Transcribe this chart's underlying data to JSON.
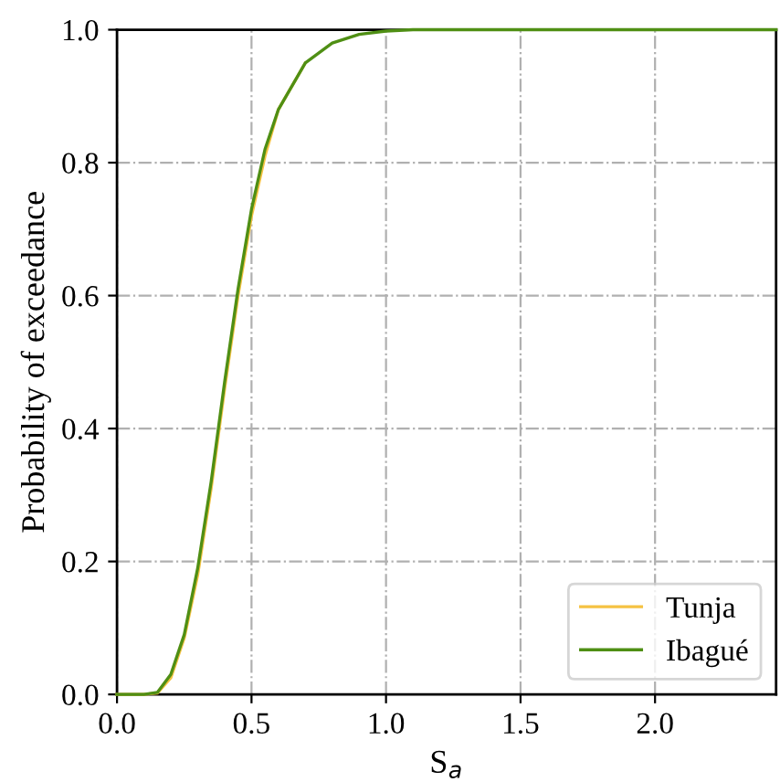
{
  "chart_data": {
    "type": "line",
    "xlabel": "S$_{a}$",
    "ylabel": "Probability of exceedance",
    "x": [
      0,
      0.1,
      0.15,
      0.2,
      0.25,
      0.3,
      0.35,
      0.4,
      0.45,
      0.5,
      0.55,
      0.6,
      0.7,
      0.8,
      0.9,
      1.0,
      1.1,
      1.5,
      2.0,
      2.45
    ],
    "series": [
      {
        "name": "Tunja",
        "color": "#f5c242",
        "values": [
          0,
          0,
          0.002,
          0.025,
          0.085,
          0.18,
          0.31,
          0.46,
          0.6,
          0.72,
          0.81,
          0.88,
          0.95,
          null,
          null,
          null,
          null,
          null,
          null,
          null
        ]
      },
      {
        "name": "Ibagué",
        "color": "#4f8f14",
        "values": [
          0,
          0,
          0.003,
          0.03,
          0.09,
          0.19,
          0.32,
          0.47,
          0.61,
          0.73,
          0.82,
          0.88,
          0.95,
          0.98,
          0.993,
          0.998,
          1,
          1,
          1,
          1
        ]
      }
    ],
    "xlim": [
      0,
      2.45
    ],
    "ylim": [
      0,
      1
    ],
    "xticks": [
      {
        "value": 0,
        "label": "0.0"
      },
      0.5,
      {
        "value": 1,
        "label": "1.0"
      },
      1.5,
      {
        "value": 2,
        "label": "2.0"
      }
    ],
    "yticks": [
      {
        "value": 0,
        "label": "0.0"
      },
      0.2,
      0.4,
      0.6,
      0.8,
      {
        "value": 1,
        "label": "1.0"
      }
    ],
    "grid": true,
    "legend": "bottom right",
    "line_style": "solid",
    "marker": "none"
  }
}
